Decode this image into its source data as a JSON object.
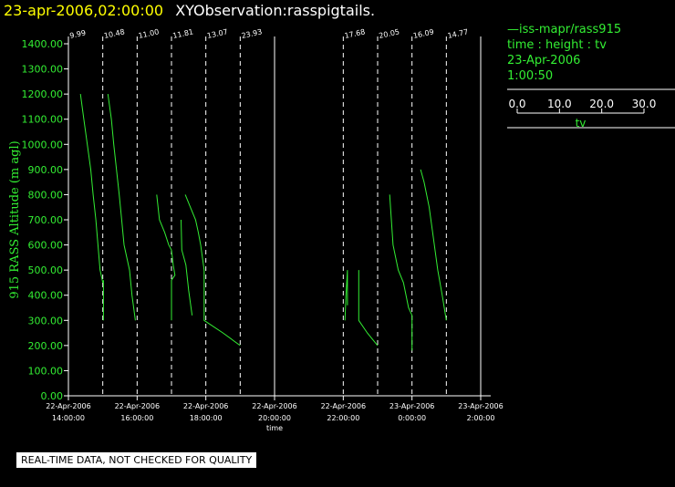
{
  "header": {
    "timestamp": "23-apr-2006,02:00:00",
    "title": "XYObservation:rasspigtails."
  },
  "legend": {
    "line1": "—iss-mapr/rass915",
    "line2": "time : height : tv",
    "line3": "23-Apr-2006",
    "line4": "1:00:50",
    "scale_ticks": [
      "0.0",
      "10.0",
      "20.0",
      "30.0"
    ],
    "scale_label": "tv"
  },
  "footer": {
    "notice": "REAL-TIME DATA, NOT CHECKED FOR QUALITY"
  },
  "colors": {
    "series": "#33ee33",
    "axes": "#ffffff",
    "header_timestamp": "#ffff00"
  },
  "chart_data": {
    "type": "line",
    "ylabel": "915 RASS Altitude (m agl)",
    "xlabel": "time",
    "ylim": [
      0,
      1400
    ],
    "yticks": [
      "0.00",
      "100.00",
      "200.00",
      "300.00",
      "400.00",
      "500.00",
      "600.00",
      "700.00",
      "800.00",
      "900.00",
      "1000.00",
      "1100.00",
      "1200.00",
      "1300.00",
      "1400.00"
    ],
    "xlim": [
      14.0,
      26.0
    ],
    "xticks": [
      {
        "x": 14,
        "date": "22-Apr-2006",
        "time": "14:00:00"
      },
      {
        "x": 16,
        "date": "22-Apr-2006",
        "time": "16:00:00"
      },
      {
        "x": 18,
        "date": "22-Apr-2006",
        "time": "18:00:00"
      },
      {
        "x": 20,
        "date": "22-Apr-2006",
        "time": "20:00:00"
      },
      {
        "x": 22,
        "date": "22-Apr-2006",
        "time": "22:00:00"
      },
      {
        "x": 24,
        "date": "23-Apr-2006",
        "time": "0:00:00"
      },
      {
        "x": 26,
        "date": "23-Apr-2006",
        "time": "2:00:00"
      }
    ],
    "profile_baselines": [
      {
        "x": 14.0,
        "label": "9.99"
      },
      {
        "x": 15.0,
        "label": "10.48"
      },
      {
        "x": 16.0,
        "label": "11.00"
      },
      {
        "x": 17.0,
        "label": "11.81"
      },
      {
        "x": 18.0,
        "label": "13.07"
      },
      {
        "x": 19.0,
        "label": "23.93"
      },
      {
        "x": 20.0,
        "label": ""
      },
      {
        "x": 22.0,
        "label": "17.68"
      },
      {
        "x": 23.0,
        "label": "20.05"
      },
      {
        "x": 24.0,
        "label": "16.09"
      },
      {
        "x": 25.0,
        "label": "14.77"
      },
      {
        "x": 26.0,
        "label": ""
      }
    ],
    "series": [
      {
        "points": [
          [
            14.35,
            1200
          ],
          [
            14.45,
            1100
          ],
          [
            14.55,
            1000
          ],
          [
            14.65,
            900
          ],
          [
            14.72,
            800
          ],
          [
            14.8,
            700
          ],
          [
            14.86,
            600
          ],
          [
            14.92,
            500
          ],
          [
            15.0,
            450
          ]
        ]
      },
      {
        "points": [
          [
            15.02,
            300
          ],
          [
            15.02,
            460
          ]
        ]
      },
      {
        "points": [
          [
            15.15,
            1200
          ],
          [
            15.25,
            1100
          ],
          [
            15.32,
            1000
          ],
          [
            15.4,
            900
          ],
          [
            15.48,
            800
          ],
          [
            15.55,
            700
          ],
          [
            15.62,
            600
          ],
          [
            15.7,
            550
          ],
          [
            15.78,
            500
          ],
          [
            15.85,
            400
          ],
          [
            15.95,
            300
          ]
        ]
      },
      {
        "points": [
          [
            16.57,
            800
          ],
          [
            16.65,
            700
          ],
          [
            16.8,
            650
          ],
          [
            16.92,
            600
          ],
          [
            17.0,
            580
          ],
          [
            17.05,
            520
          ],
          [
            17.1,
            480
          ],
          [
            17.0,
            460
          ],
          [
            17.0,
            300
          ]
        ]
      },
      {
        "points": [
          [
            17.28,
            700
          ],
          [
            17.3,
            580
          ],
          [
            17.42,
            520
          ],
          [
            17.5,
            420
          ],
          [
            17.6,
            320
          ]
        ]
      },
      {
        "points": [
          [
            17.4,
            800
          ],
          [
            17.55,
            750
          ],
          [
            17.7,
            700
          ],
          [
            17.78,
            650
          ],
          [
            17.85,
            600
          ],
          [
            17.9,
            550
          ],
          [
            17.95,
            500
          ],
          [
            17.95,
            300
          ],
          [
            18.5,
            250
          ],
          [
            19.0,
            200
          ]
        ]
      },
      {
        "points": [
          [
            22.05,
            300
          ],
          [
            22.08,
            400
          ],
          [
            22.12,
            500
          ],
          [
            22.12,
            360
          ]
        ]
      },
      {
        "points": [
          [
            22.45,
            500
          ],
          [
            22.45,
            300
          ],
          [
            22.7,
            250
          ],
          [
            23.0,
            200
          ]
        ]
      },
      {
        "points": [
          [
            23.35,
            800
          ],
          [
            23.45,
            600
          ],
          [
            23.6,
            500
          ],
          [
            23.75,
            450
          ],
          [
            23.9,
            350
          ],
          [
            24.0,
            320
          ],
          [
            24.0,
            180
          ]
        ]
      },
      {
        "points": [
          [
            24.25,
            900
          ],
          [
            24.35,
            850
          ],
          [
            24.5,
            750
          ],
          [
            24.6,
            650
          ],
          [
            24.75,
            500
          ],
          [
            24.88,
            400
          ],
          [
            25.0,
            300
          ]
        ]
      }
    ]
  }
}
